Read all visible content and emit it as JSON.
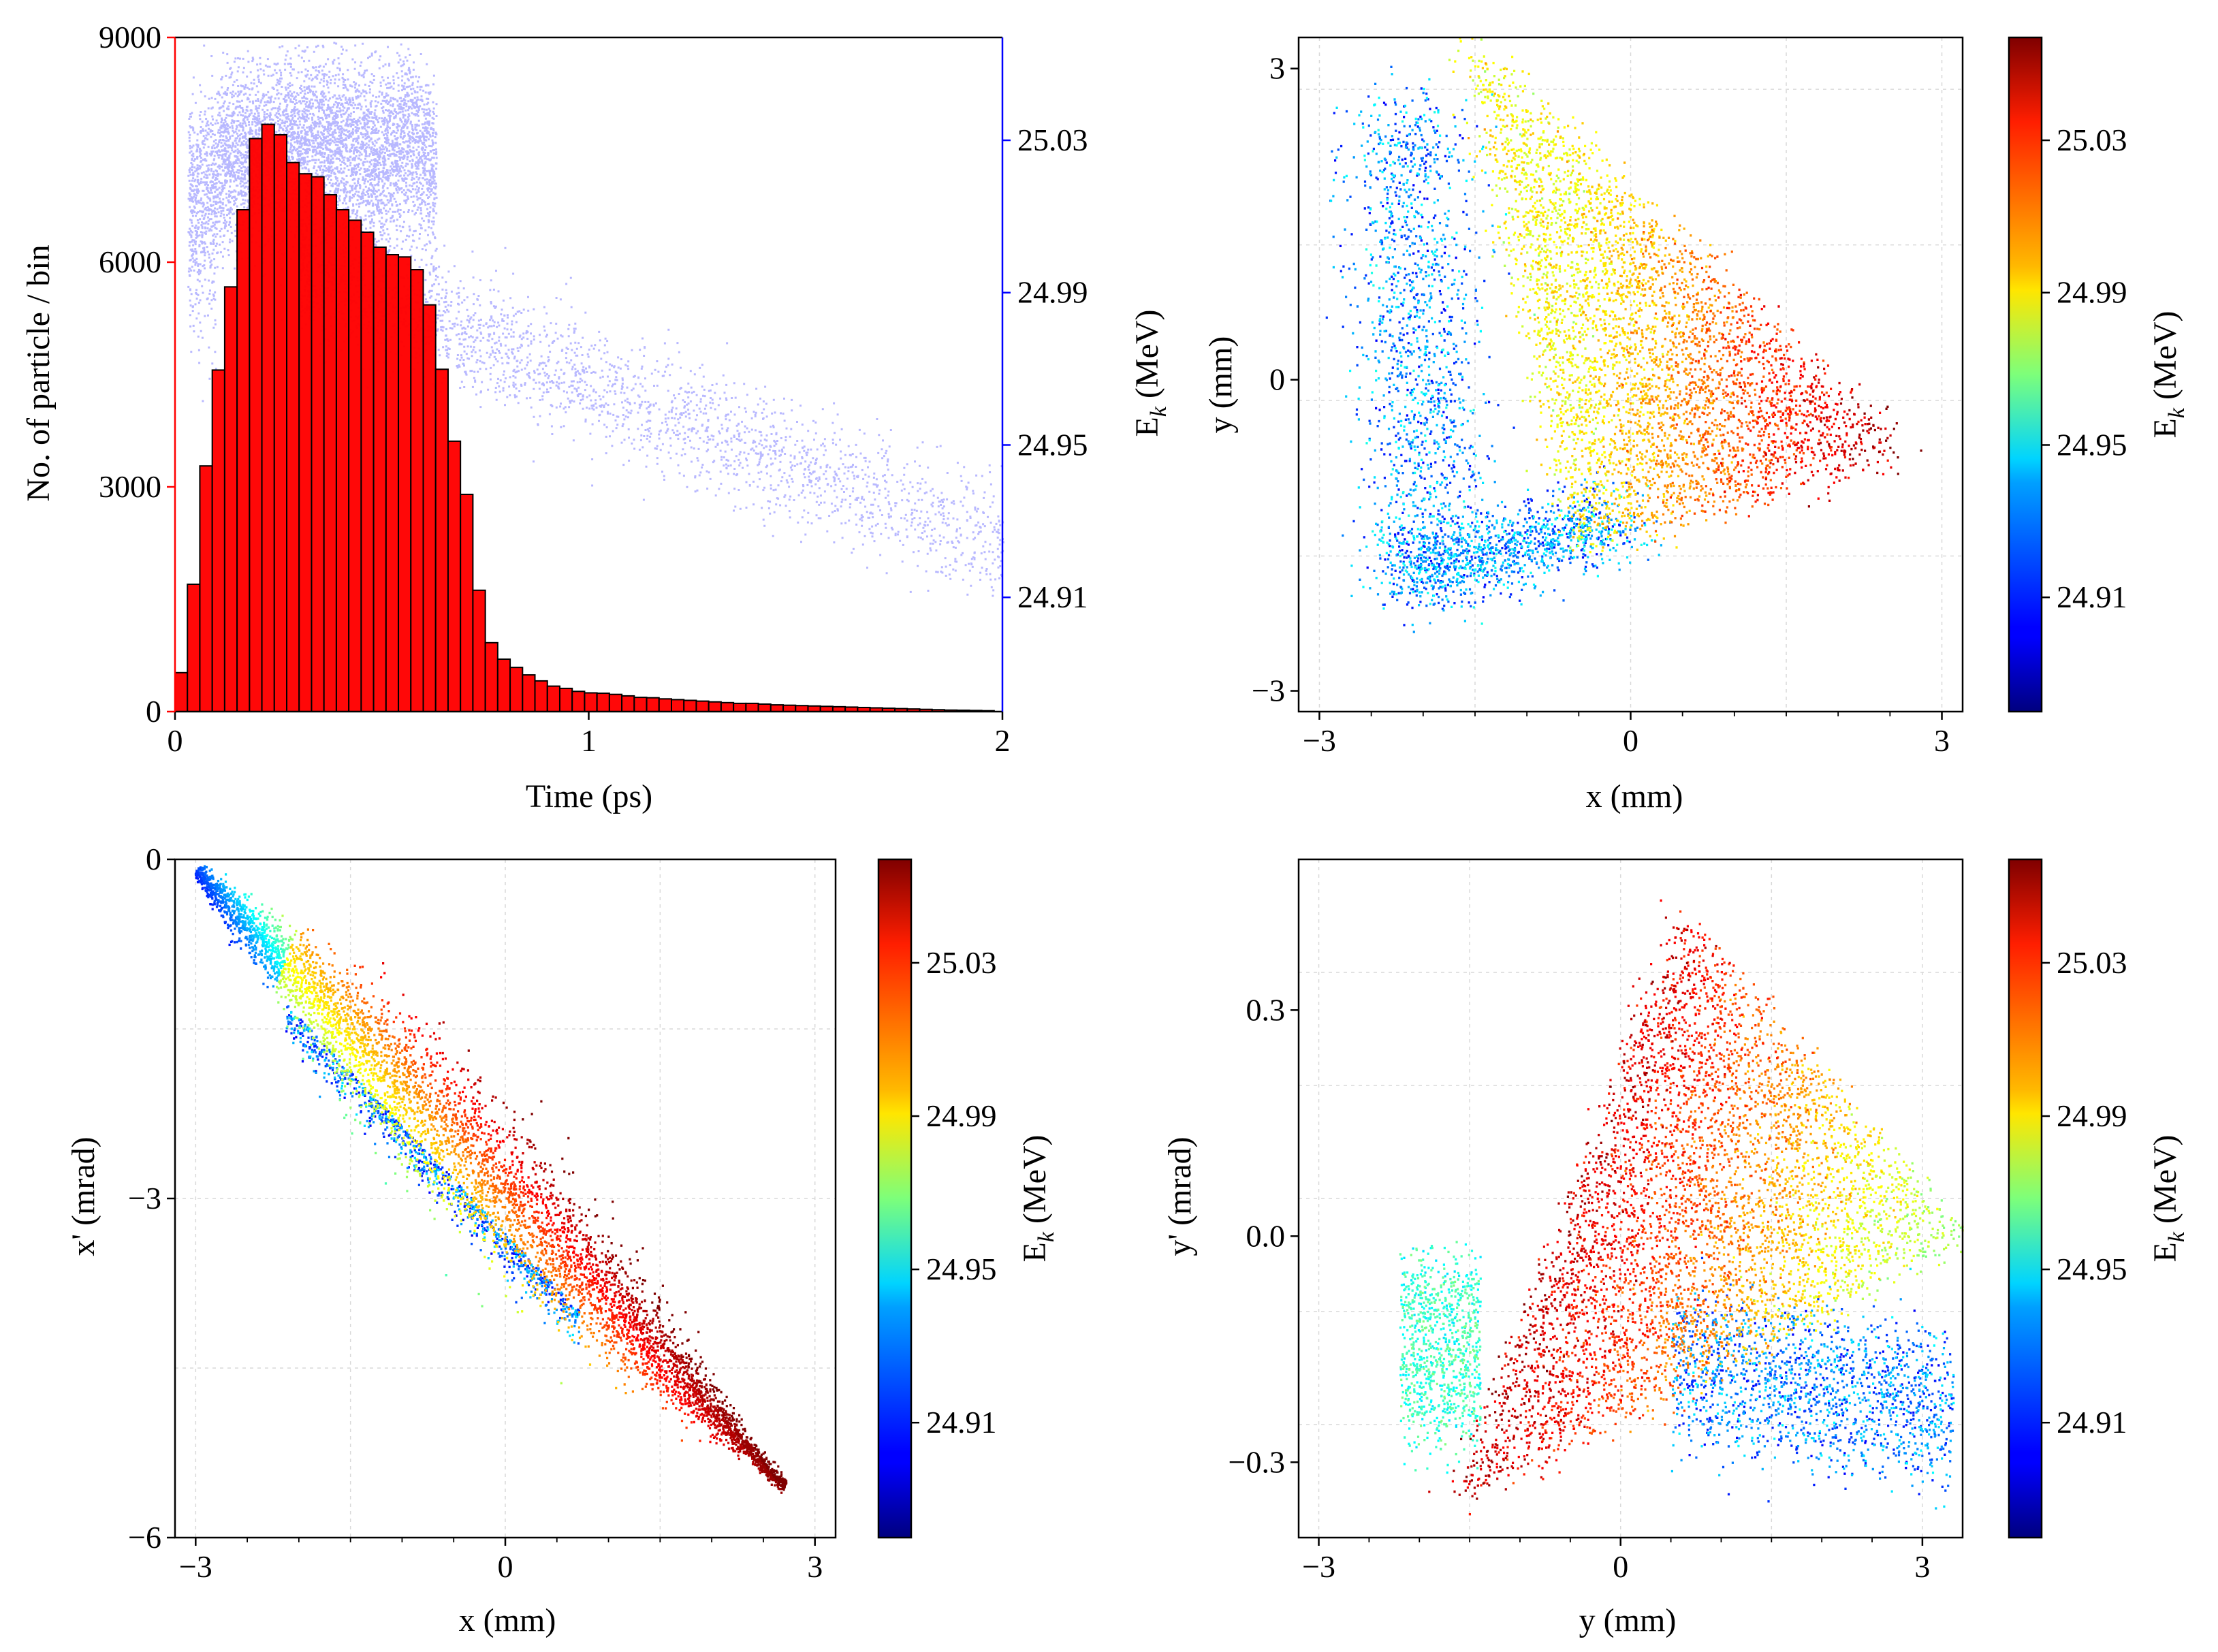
{
  "colors": {
    "histogram": "#ff0000",
    "energy_scatter": "#0000ff",
    "colormap": "jet"
  },
  "chart_data": [
    {
      "id": "time-hist",
      "type": "bar",
      "title": "",
      "xlabel": "Time (ps)",
      "ylabel": "No. of particle / bin",
      "y2label_main": "E",
      "y2label_sub": "k",
      "y2label_unit": " (MeV)",
      "xlim": [
        0,
        2
      ],
      "ylim": [
        0,
        9000
      ],
      "y2lim": [
        24.88,
        25.057
      ],
      "xticks": [
        "0",
        "1",
        "2"
      ],
      "yticks": [
        "0",
        "3000",
        "6000",
        "9000"
      ],
      "y2ticks": [
        "24.91",
        "24.95",
        "24.99",
        "25.03"
      ],
      "bin_width": 0.03,
      "bins_start": [
        0.0,
        0.03,
        0.06,
        0.09,
        0.12,
        0.15,
        0.18,
        0.21,
        0.24,
        0.27,
        0.3,
        0.33,
        0.36,
        0.39,
        0.42,
        0.45,
        0.48,
        0.51,
        0.54,
        0.57,
        0.6,
        0.63,
        0.66,
        0.69,
        0.72,
        0.75,
        0.78,
        0.81,
        0.84,
        0.87,
        0.9,
        0.93,
        0.96,
        0.99,
        1.02,
        1.05,
        1.08,
        1.11,
        1.14,
        1.17,
        1.2,
        1.23,
        1.26,
        1.29,
        1.32,
        1.35,
        1.38,
        1.41,
        1.44,
        1.47,
        1.5,
        1.53,
        1.56,
        1.59,
        1.62,
        1.65,
        1.68,
        1.71,
        1.74,
        1.77,
        1.8,
        1.83,
        1.86,
        1.89,
        1.92,
        1.95
      ],
      "values": [
        520,
        1700,
        3280,
        4560,
        5670,
        6700,
        7650,
        7840,
        7700,
        7330,
        7180,
        7140,
        6900,
        6700,
        6560,
        6400,
        6200,
        6100,
        6070,
        5900,
        5430,
        4570,
        3610,
        2900,
        1620,
        920,
        700,
        590,
        490,
        410,
        340,
        310,
        270,
        250,
        245,
        230,
        210,
        190,
        185,
        170,
        160,
        150,
        140,
        130,
        120,
        110,
        110,
        100,
        90,
        85,
        80,
        75,
        70,
        65,
        60,
        55,
        50,
        45,
        40,
        35,
        30,
        25,
        20,
        18,
        15,
        12
      ]
    },
    {
      "id": "xy-scatter",
      "type": "scatter",
      "title": "",
      "xlabel": "x (mm)",
      "ylabel": "y (mm)",
      "xlim": [
        -3.2,
        3.2
      ],
      "ylim": [
        -3.2,
        3.3
      ],
      "xticks": [
        "−3",
        "0",
        "3"
      ],
      "yticks": [
        "−3",
        "0",
        "3"
      ],
      "color_by": "E_k (MeV)"
    },
    {
      "id": "xxp-scatter",
      "type": "scatter",
      "title": "",
      "xlabel": "x (mm)",
      "ylabel": "x' (mrad)",
      "xlim": [
        -3.2,
        3.2
      ],
      "ylim": [
        -6,
        0
      ],
      "xticks": [
        "−3",
        "0",
        "3"
      ],
      "yticks": [
        "−6",
        "−3",
        "0"
      ],
      "color_by": "E_k (MeV)"
    },
    {
      "id": "yyp-scatter",
      "type": "scatter",
      "title": "",
      "xlabel": "y (mm)",
      "ylabel": "y' (mrad)",
      "xlim": [
        -3.2,
        3.4
      ],
      "ylim": [
        -0.4,
        0.5
      ],
      "xticks": [
        "−3",
        "0",
        "3"
      ],
      "yticks": [
        "−0.3",
        "0.0",
        "0.3"
      ],
      "color_by": "E_k (MeV)"
    }
  ],
  "colorbar": {
    "label_main": "E",
    "label_sub": "k",
    "label_unit": " (MeV)",
    "range": [
      24.88,
      25.057
    ],
    "ticks": [
      "24.91",
      "24.95",
      "24.99",
      "25.03"
    ]
  }
}
